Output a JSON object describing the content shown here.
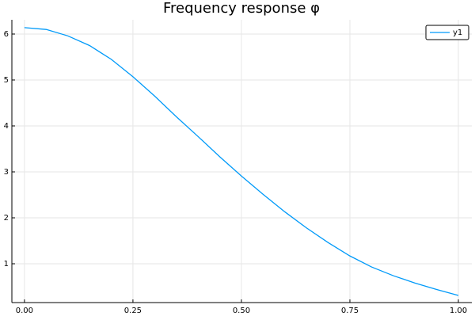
{
  "chart_data": {
    "type": "line",
    "title": "Frequency response φ",
    "x": [
      0,
      0.05,
      0.1,
      0.15,
      0.2,
      0.25,
      0.3,
      0.35,
      0.4,
      0.45,
      0.5,
      0.55,
      0.6,
      0.65,
      0.7,
      0.75,
      0.8,
      0.85,
      0.9,
      0.95,
      1.0
    ],
    "series": [
      {
        "name": "y1",
        "color": "#009af9",
        "values": [
          6.14,
          6.1,
          5.96,
          5.75,
          5.45,
          5.07,
          4.65,
          4.2,
          3.77,
          3.33,
          2.91,
          2.51,
          2.13,
          1.78,
          1.46,
          1.17,
          0.93,
          0.74,
          0.58,
          0.44,
          0.31
        ]
      }
    ],
    "xlim": [
      -0.029,
      1.031
    ],
    "ylim": [
      0.155,
      6.31
    ],
    "xticks": [
      {
        "value": 0,
        "label": "0.00"
      },
      {
        "value": 0.25,
        "label": "0.25"
      },
      {
        "value": 0.5,
        "label": "0.50"
      },
      {
        "value": 0.75,
        "label": "0.75"
      },
      {
        "value": 1,
        "label": "1.00"
      }
    ],
    "yticks": [
      1,
      2,
      3,
      4,
      5,
      6
    ],
    "grid": true,
    "legend": "top-right"
  }
}
